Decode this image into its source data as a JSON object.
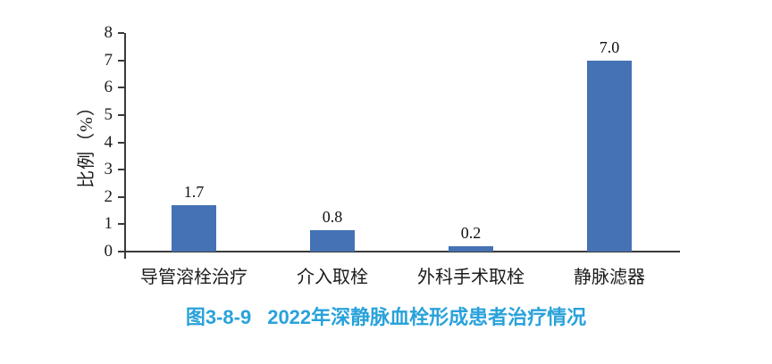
{
  "chart_data": {
    "type": "bar",
    "title": "图3-8-9　2022年深静脉血栓形成患者治疗情况",
    "categories": [
      "导管溶栓治疗",
      "介入取栓",
      "外科手术取栓",
      "静脉滤器"
    ],
    "values": [
      1.7,
      0.8,
      0.2,
      7.0
    ],
    "value_labels": [
      "1.7",
      "0.8",
      "0.2",
      "7.0"
    ],
    "xlabel": "",
    "ylabel": "比例（%）",
    "ylim": [
      0,
      8
    ],
    "yticks": [
      0,
      1,
      2,
      3,
      4,
      5,
      6,
      7,
      8
    ],
    "grid": false,
    "legend": "none",
    "bar_color": "#4472B5"
  },
  "caption": {
    "label": "图3-8-9",
    "text": "2022年深静脉血栓形成患者治疗情况",
    "color": "#29A2DA"
  },
  "colors": {
    "axis": "#3A3A3A",
    "text": "#1C1C1C"
  }
}
